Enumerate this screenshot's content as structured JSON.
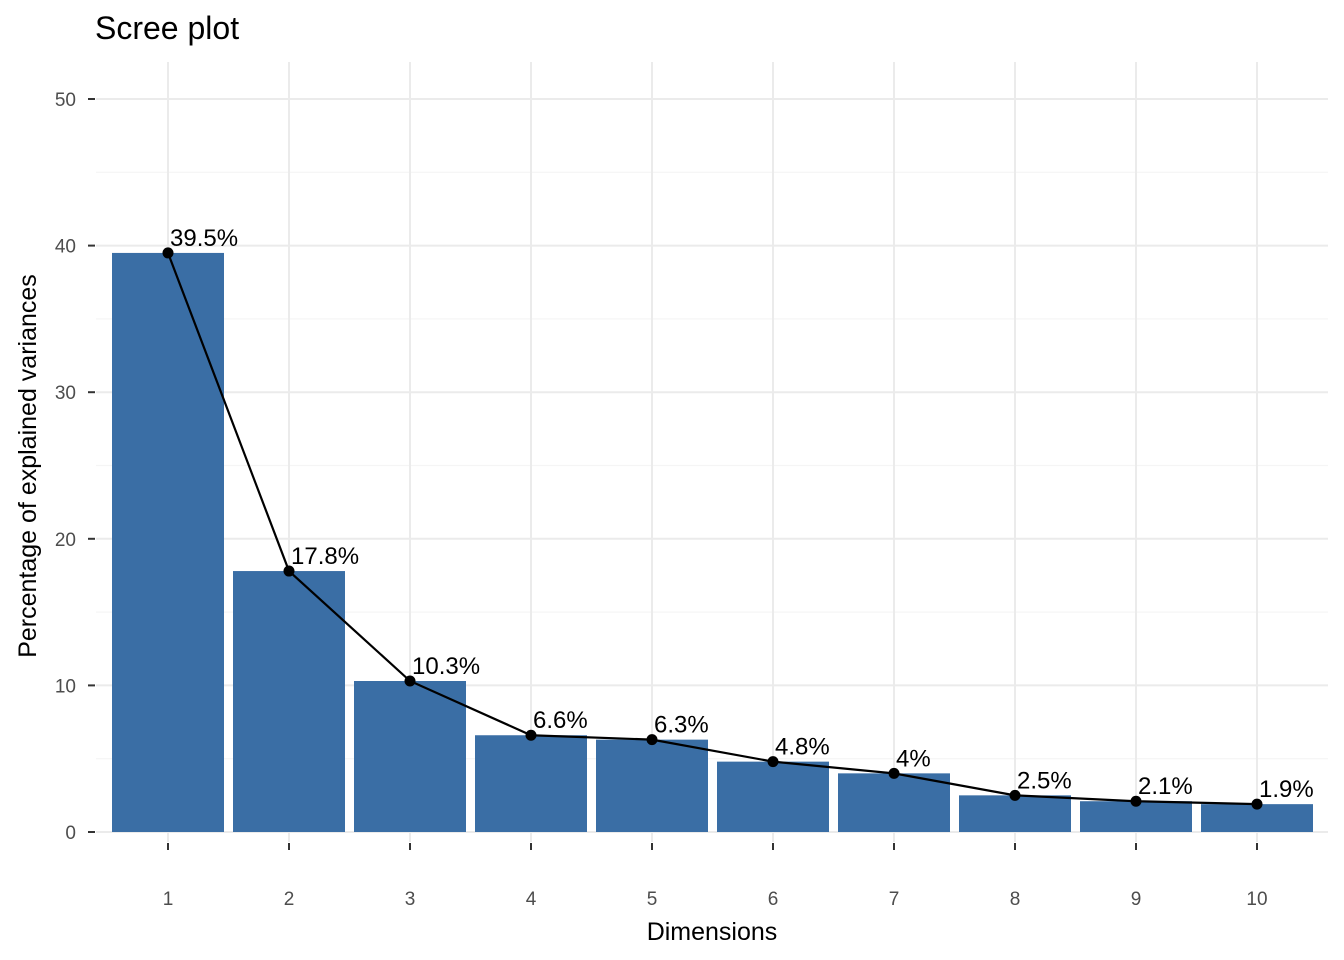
{
  "chart_data": {
    "type": "bar",
    "title": "Scree plot",
    "xlabel": "Dimensions",
    "ylabel": "Percentage of explained variances",
    "categories": [
      "1",
      "2",
      "3",
      "4",
      "5",
      "6",
      "7",
      "8",
      "9",
      "10"
    ],
    "values": [
      39.5,
      17.8,
      10.3,
      6.6,
      6.3,
      4.8,
      4.0,
      2.5,
      2.1,
      1.9
    ],
    "value_labels": [
      "39.5%",
      "17.8%",
      "10.3%",
      "6.6%",
      "6.3%",
      "4.8%",
      "4%",
      "2.5%",
      "2.1%",
      "1.9%"
    ],
    "yticks": [
      0,
      10,
      20,
      30,
      40,
      50
    ],
    "ylim": [
      0,
      52.5
    ],
    "grid": true,
    "overlay_line": true,
    "colors": {
      "bar": "#3A6EA5",
      "line": "#000000",
      "grid_major": "#EBEBEB",
      "grid_minor": "#F5F5F5"
    }
  }
}
